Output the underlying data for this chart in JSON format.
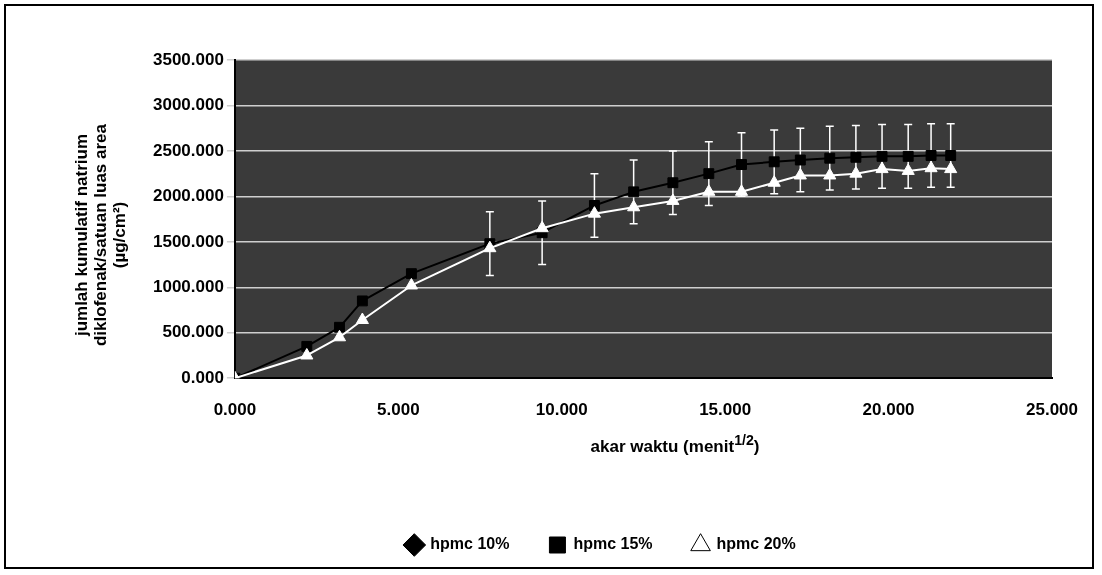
{
  "chart_data": {
    "type": "line",
    "xlabel": "akar waktu (menit$^{1/2}$)",
    "ylabel": "jumlah kumulatif natrium diklofenak/satuan luas area (µg/cm²)",
    "xlim": [
      0,
      25
    ],
    "xticks": [
      {
        "value": 0,
        "label": "0.000"
      },
      {
        "value": 5,
        "label": "5.000"
      },
      {
        "value": 10,
        "label": "10.000"
      },
      {
        "value": 15,
        "label": "15.000"
      },
      {
        "value": 20,
        "label": "20.000"
      },
      {
        "value": 25,
        "label": "25.000"
      }
    ],
    "ylim": [
      0,
      3500
    ],
    "yticks": [
      {
        "value": 0,
        "label": "0.000"
      },
      {
        "value": 500,
        "label": "500.000"
      },
      {
        "value": 1000,
        "label": "1000.000"
      },
      {
        "value": 1500,
        "label": "1500.000"
      },
      {
        "value": 2000,
        "label": "2000.000"
      },
      {
        "value": 2500,
        "label": "2500.000"
      },
      {
        "value": 3000,
        "label": "3000.000"
      },
      {
        "value": 3500,
        "label": "3500.000"
      }
    ],
    "x": [
      0,
      2.2,
      3.2,
      3.9,
      5.4,
      7.8,
      9.4,
      11,
      12.2,
      13.4,
      14.5,
      15.5,
      16.5,
      17.3,
      18.2,
      19,
      19.8,
      20.6,
      21.3,
      21.9
    ],
    "grid": "y",
    "legend": "bottom",
    "line_style": "solid",
    "series": [
      {
        "name": "hpmc 10%",
        "color": "#000000",
        "marker": "diamond",
        "values": [
          null,
          null,
          null,
          null,
          null,
          null,
          null,
          null,
          null,
          null,
          null,
          null,
          null,
          null,
          null,
          null,
          null,
          null,
          null,
          null
        ]
      },
      {
        "name": "hpmc 15%",
        "color": "#000000",
        "marker": "square",
        "values": [
          0,
          350,
          560,
          850,
          1150,
          1480,
          1600,
          1900,
          2050,
          2150,
          2250,
          2350,
          2380,
          2400,
          2420,
          2430,
          2440,
          2440,
          2450,
          2450
        ],
        "errors": [
          null,
          null,
          null,
          null,
          null,
          350,
          350,
          350,
          350,
          350,
          350,
          350,
          350,
          350,
          350,
          350,
          350,
          350,
          350,
          350
        ]
      },
      {
        "name": "hpmc 20%",
        "color": "#ffffff",
        "marker": "triangle",
        "values": [
          0,
          250,
          450,
          640,
          1020,
          1430,
          1650,
          1810,
          1880,
          1950,
          2050,
          2050,
          2150,
          2230,
          2230,
          2250,
          2300,
          2280,
          2310,
          2300
        ]
      }
    ]
  }
}
